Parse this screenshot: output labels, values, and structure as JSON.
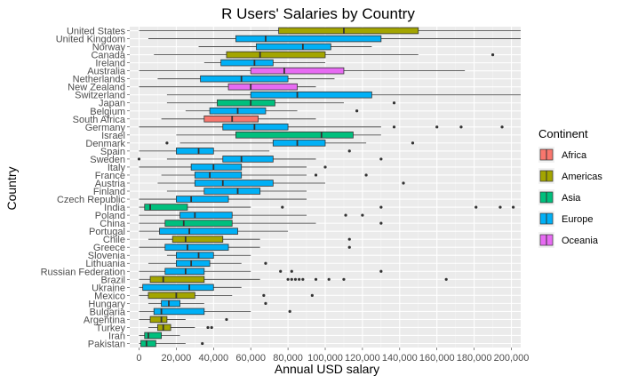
{
  "chart_data": {
    "type": "boxplot",
    "orientation": "horizontal",
    "title": "R Users' Salaries by Country",
    "xlabel": "Annual USD salary",
    "ylabel": "Country",
    "xlim": [
      -5000,
      205000
    ],
    "x_ticks": [
      0,
      20000,
      40000,
      60000,
      80000,
      100000,
      120000,
      140000,
      160000,
      180000,
      200000
    ],
    "x_tick_labels": [
      "0",
      "20,000",
      "40,000",
      "60,000",
      "80,000",
      "100,000",
      "120,000",
      "140,000",
      "160,000",
      "180,000",
      "200,000"
    ],
    "grid": true,
    "legend_position": "right",
    "legend_title": "Continent",
    "legend": [
      {
        "name": "Africa",
        "color": "#F8766D"
      },
      {
        "name": "Americas",
        "color": "#A3A500"
      },
      {
        "name": "Asia",
        "color": "#00BF7D"
      },
      {
        "name": "Europe",
        "color": "#00B0F6"
      },
      {
        "name": "Oceania",
        "color": "#E76BF3"
      }
    ],
    "categories": [
      {
        "country": "United States",
        "continent": "Americas",
        "min": 0,
        "q1": 75000,
        "median": 110000,
        "q3": 150000,
        "max": 210000,
        "outliers": []
      },
      {
        "country": "United Kingdom",
        "continent": "Europe",
        "min": 5000,
        "q1": 52000,
        "median": 68000,
        "q3": 130000,
        "max": 210000,
        "outliers": []
      },
      {
        "country": "Norway",
        "continent": "Europe",
        "min": 32000,
        "q1": 63000,
        "median": 88000,
        "q3": 103000,
        "max": 125000,
        "outliers": []
      },
      {
        "country": "Canada",
        "continent": "Americas",
        "min": 8000,
        "q1": 47000,
        "median": 65000,
        "q3": 100000,
        "max": 150000,
        "outliers": [
          190000
        ]
      },
      {
        "country": "Ireland",
        "continent": "Europe",
        "min": 35000,
        "q1": 44000,
        "median": 62000,
        "q3": 72000,
        "max": 100000,
        "outliers": []
      },
      {
        "country": "Australia",
        "continent": "Oceania",
        "min": 0,
        "q1": 60000,
        "median": 78000,
        "q3": 110000,
        "max": 175000,
        "outliers": []
      },
      {
        "country": "Netherlands",
        "continent": "Europe",
        "min": 10000,
        "q1": 33000,
        "median": 55000,
        "q3": 80000,
        "max": 105000,
        "outliers": [
          206000
        ]
      },
      {
        "country": "New Zealand",
        "continent": "Oceania",
        "min": 0,
        "q1": 48000,
        "median": 60000,
        "q3": 85000,
        "max": 95000,
        "outliers": []
      },
      {
        "country": "Switzerland",
        "continent": "Europe",
        "min": 15000,
        "q1": 60000,
        "median": 85000,
        "q3": 125000,
        "max": 210000,
        "outliers": []
      },
      {
        "country": "Japan",
        "continent": "Asia",
        "min": 15000,
        "q1": 42000,
        "median": 60000,
        "q3": 73000,
        "max": 110000,
        "outliers": [
          137000
        ]
      },
      {
        "country": "Belgium",
        "continent": "Europe",
        "min": 25000,
        "q1": 38000,
        "median": 53000,
        "q3": 68000,
        "max": 85000,
        "outliers": [
          117000,
          206000
        ]
      },
      {
        "country": "South Africa",
        "continent": "Africa",
        "min": 12000,
        "q1": 35000,
        "median": 50000,
        "q3": 64000,
        "max": 95000,
        "outliers": []
      },
      {
        "country": "Germany",
        "continent": "Europe",
        "min": 0,
        "q1": 45000,
        "median": 62000,
        "q3": 80000,
        "max": 130000,
        "outliers": [
          137000,
          160000,
          173000,
          195000
        ]
      },
      {
        "country": "Israel",
        "continent": "Asia",
        "min": 20000,
        "q1": 52000,
        "median": 98000,
        "q3": 115000,
        "max": 130000,
        "outliers": []
      },
      {
        "country": "Denmark",
        "continent": "Europe",
        "min": 22000,
        "q1": 72000,
        "median": 85000,
        "q3": 100000,
        "max": 122000,
        "outliers": [
          15000,
          147000
        ]
      },
      {
        "country": "Spain",
        "continent": "Europe",
        "min": 0,
        "q1": 20000,
        "median": 32000,
        "q3": 40000,
        "max": 70000,
        "outliers": [
          113000
        ]
      },
      {
        "country": "Sweden",
        "continent": "Europe",
        "min": 15000,
        "q1": 45000,
        "median": 55000,
        "q3": 72000,
        "max": 95000,
        "outliers": [
          0,
          130000
        ]
      },
      {
        "country": "Italy",
        "continent": "Europe",
        "min": 0,
        "q1": 28000,
        "median": 40000,
        "q3": 55000,
        "max": 90000,
        "outliers": [
          100000
        ]
      },
      {
        "country": "France",
        "continent": "Europe",
        "min": 12000,
        "q1": 30000,
        "median": 38000,
        "q3": 55000,
        "max": 90000,
        "outliers": [
          95000,
          122000
        ]
      },
      {
        "country": "Austria",
        "continent": "Europe",
        "min": 10000,
        "q1": 30000,
        "median": 45000,
        "q3": 72000,
        "max": 100000,
        "outliers": [
          142000
        ]
      },
      {
        "country": "Finland",
        "continent": "Europe",
        "min": 15000,
        "q1": 35000,
        "median": 53000,
        "q3": 65000,
        "max": 90000,
        "outliers": []
      },
      {
        "country": "Czech Republic",
        "continent": "Europe",
        "min": 0,
        "q1": 20000,
        "median": 28000,
        "q3": 48000,
        "max": 90000,
        "outliers": []
      },
      {
        "country": "India",
        "continent": "Asia",
        "min": 0,
        "q1": 3000,
        "median": 6000,
        "q3": 26000,
        "max": 60000,
        "outliers": [
          77000,
          130000,
          181000,
          194000,
          201000,
          208000
        ]
      },
      {
        "country": "Poland",
        "continent": "Europe",
        "min": 0,
        "q1": 22000,
        "median": 30000,
        "q3": 50000,
        "max": 90000,
        "outliers": [
          111000,
          120000
        ]
      },
      {
        "country": "China",
        "continent": "Asia",
        "min": 0,
        "q1": 14000,
        "median": 24000,
        "q3": 50000,
        "max": 95000,
        "outliers": [
          130000
        ]
      },
      {
        "country": "Portugal",
        "continent": "Europe",
        "min": 0,
        "q1": 11000,
        "median": 27000,
        "q3": 53000,
        "max": 80000,
        "outliers": []
      },
      {
        "country": "Chile",
        "continent": "Americas",
        "min": 5000,
        "q1": 18000,
        "median": 25000,
        "q3": 45000,
        "max": 65000,
        "outliers": [
          113000
        ]
      },
      {
        "country": "Greece",
        "continent": "Europe",
        "min": 0,
        "q1": 14000,
        "median": 26000,
        "q3": 48000,
        "max": 65000,
        "outliers": [
          113000
        ]
      },
      {
        "country": "Slovenia",
        "continent": "Europe",
        "min": 15000,
        "q1": 20000,
        "median": 32000,
        "q3": 40000,
        "max": 60000,
        "outliers": []
      },
      {
        "country": "Lithuania",
        "continent": "Europe",
        "min": 5000,
        "q1": 20000,
        "median": 28000,
        "q3": 38000,
        "max": 55000,
        "outliers": [
          68000
        ]
      },
      {
        "country": "Russian Federation",
        "continent": "Europe",
        "min": 0,
        "q1": 14000,
        "median": 25000,
        "q3": 35000,
        "max": 60000,
        "outliers": [
          76000,
          82000,
          130000
        ]
      },
      {
        "country": "Brazil",
        "continent": "Americas",
        "min": 0,
        "q1": 6000,
        "median": 13000,
        "q3": 35000,
        "max": 65000,
        "outliers": [
          80000,
          82000,
          84000,
          86000,
          88000,
          95000,
          102000,
          110000,
          165000
        ]
      },
      {
        "country": "Ukraine",
        "continent": "Europe",
        "min": 0,
        "q1": 2000,
        "median": 27000,
        "q3": 40000,
        "max": 55000,
        "outliers": []
      },
      {
        "country": "Mexico",
        "continent": "Americas",
        "min": 0,
        "q1": 5000,
        "median": 20000,
        "q3": 30000,
        "max": 50000,
        "outliers": [
          67000,
          93000
        ]
      },
      {
        "country": "Hungary",
        "continent": "Europe",
        "min": 5000,
        "q1": 12000,
        "median": 16000,
        "q3": 22000,
        "max": 35000,
        "outliers": [
          68000
        ]
      },
      {
        "country": "Bulgaria",
        "continent": "Europe",
        "min": 0,
        "q1": 8000,
        "median": 12000,
        "q3": 35000,
        "max": 60000,
        "outliers": [
          81000
        ]
      },
      {
        "country": "Argentina",
        "continent": "Americas",
        "min": 0,
        "q1": 6000,
        "median": 12000,
        "q3": 15000,
        "max": 25000,
        "outliers": [
          47000
        ]
      },
      {
        "country": "Turkey",
        "continent": "Americas",
        "min": 5000,
        "q1": 10000,
        "median": 13000,
        "q3": 17000,
        "max": 30000,
        "outliers": [
          37000,
          39000
        ]
      },
      {
        "country": "Iran",
        "continent": "Asia",
        "min": 0,
        "q1": 3000,
        "median": 5000,
        "q3": 12000,
        "max": 22000,
        "outliers": []
      },
      {
        "country": "Pakistan",
        "continent": "Asia",
        "min": 0,
        "q1": 1000,
        "median": 4000,
        "q3": 9000,
        "max": 25000,
        "outliers": [
          34000
        ]
      }
    ]
  }
}
